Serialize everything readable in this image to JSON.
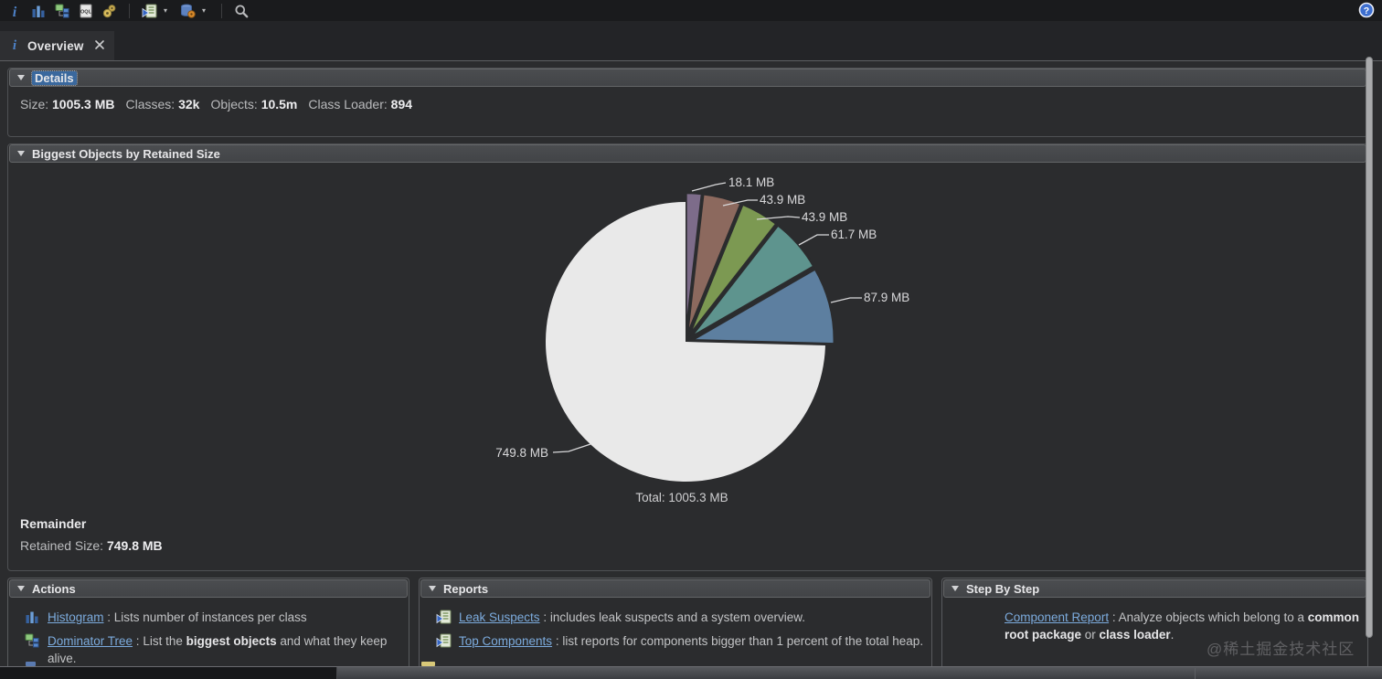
{
  "toolbar": {
    "icons": [
      {
        "name": "info-icon"
      },
      {
        "name": "histogram-icon"
      },
      {
        "name": "dominator-tree-icon"
      },
      {
        "name": "oql-icon"
      },
      {
        "name": "gears-icon"
      },
      {
        "sep": true
      },
      {
        "name": "query-browser-icon",
        "dropdown": true
      },
      {
        "name": "heap-dump-icon",
        "dropdown": true
      },
      {
        "sep": true
      },
      {
        "name": "search-icon"
      }
    ],
    "help_icon": "help-icon"
  },
  "tab": {
    "label": "Overview"
  },
  "details": {
    "title": "Details",
    "stats": [
      {
        "label": "Size:",
        "value": "1005.3 MB"
      },
      {
        "label": "Classes:",
        "value": "32k"
      },
      {
        "label": "Objects:",
        "value": "10.5m"
      },
      {
        "label": "Class Loader:",
        "value": "894"
      }
    ]
  },
  "biggest_objects": {
    "title": "Biggest Objects by Retained Size",
    "remainder_title": "Remainder",
    "remainder_label": "Retained Size:",
    "remainder_value": "749.8 MB"
  },
  "chart_data": {
    "type": "pie",
    "title": "Biggest Objects by Retained Size",
    "total_label": "Total: 1005.3 MB",
    "total_value_mb": 1005.3,
    "unit": "MB",
    "legend_position": "callout-labels",
    "slices": [
      {
        "label": "18.1 MB",
        "value": 18.1,
        "color": "#7d6c8a"
      },
      {
        "label": "43.9 MB",
        "value": 43.9,
        "color": "#8c695e"
      },
      {
        "label": "43.9 MB",
        "value": 43.9,
        "color": "#7c9952"
      },
      {
        "label": "61.7 MB",
        "value": 61.7,
        "color": "#5e948e"
      },
      {
        "label": "87.9 MB",
        "value": 87.9,
        "color": "#5d7fa0"
      },
      {
        "label": "749.8 MB",
        "value": 749.8,
        "color": "#e9e9e9",
        "name": "Remainder"
      }
    ]
  },
  "actions": {
    "title": "Actions",
    "items": [
      {
        "icon": "histogram-icon",
        "link": "Histogram",
        "sep": " : ",
        "desc": [
          {
            "t": "Lists number of instances per class",
            "b": false
          }
        ]
      },
      {
        "icon": "dominator-tree-icon",
        "link": "Dominator Tree",
        "sep": " : ",
        "desc": [
          {
            "t": "List the ",
            "b": false
          },
          {
            "t": "biggest objects",
            "b": true
          },
          {
            "t": " and what they keep alive.",
            "b": false
          }
        ]
      }
    ]
  },
  "reports": {
    "title": "Reports",
    "items": [
      {
        "icon": "report-icon",
        "link": "Leak Suspects",
        "sep": " : ",
        "desc": [
          {
            "t": "includes leak suspects and a system overview.",
            "b": false
          }
        ]
      },
      {
        "icon": "report-icon",
        "link": "Top Components",
        "sep": " : ",
        "desc": [
          {
            "t": "list reports for components bigger than 1 percent of the total heap.",
            "b": false
          }
        ]
      }
    ]
  },
  "step_by_step": {
    "title": "Step By Step",
    "items": [
      {
        "icon": null,
        "link": "Component Report",
        "sep": " : ",
        "desc": [
          {
            "t": "Analyze objects which belong to a ",
            "b": false
          },
          {
            "t": "common root package",
            "b": true
          },
          {
            "t": " or ",
            "b": false
          },
          {
            "t": "class loader",
            "b": true
          },
          {
            "t": ".",
            "b": false
          }
        ]
      }
    ]
  },
  "watermark": "@稀土掘金技术社区"
}
